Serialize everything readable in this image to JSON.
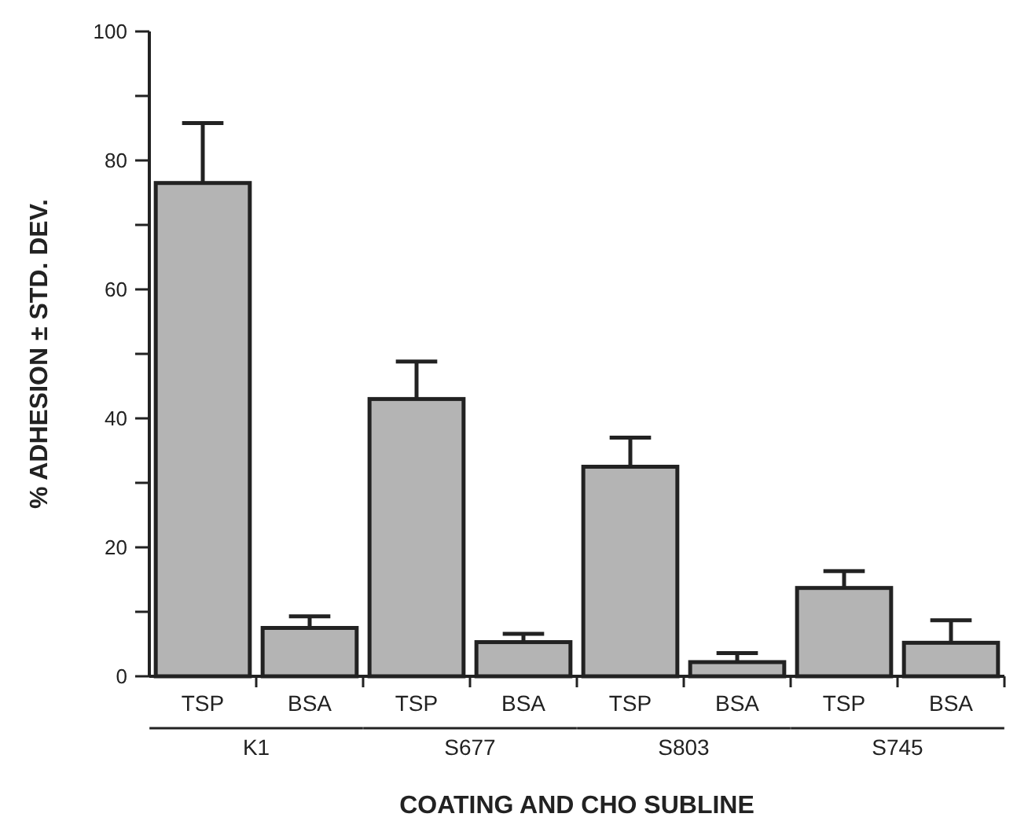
{
  "chart_data": {
    "type": "bar",
    "categories": [
      "TSP",
      "BSA",
      "TSP",
      "BSA",
      "TSP",
      "BSA",
      "TSP",
      "BSA"
    ],
    "values": [
      76.5,
      7.5,
      43,
      5.3,
      32.5,
      2.2,
      13.7,
      5.2
    ],
    "errors": [
      [
        76.5,
        85.8
      ],
      [
        7.5,
        9.3
      ],
      [
        43,
        48.8
      ],
      [
        5.3,
        6.6
      ],
      [
        32.5,
        37
      ],
      [
        2.2,
        3.6
      ],
      [
        13.7,
        16.3
      ],
      [
        5.2,
        8.7
      ]
    ],
    "color": "#b4b4b4",
    "ylim": [
      0,
      100
    ],
    "yticks": [
      0,
      {
        "value": 10,
        "label": null
      },
      20,
      {
        "value": 30,
        "label": null
      },
      40,
      {
        "value": 50,
        "label": null
      },
      60,
      {
        "value": 70,
        "label": null
      },
      80,
      {
        "value": 90,
        "label": null
      },
      100
    ],
    "xlabel": "COATING AND CHO SUBLINE",
    "ylabel": "% ADHESION ± STD. DEV.",
    "annotations": [
      "K1",
      "S677",
      "S803",
      "S745"
    ]
  }
}
